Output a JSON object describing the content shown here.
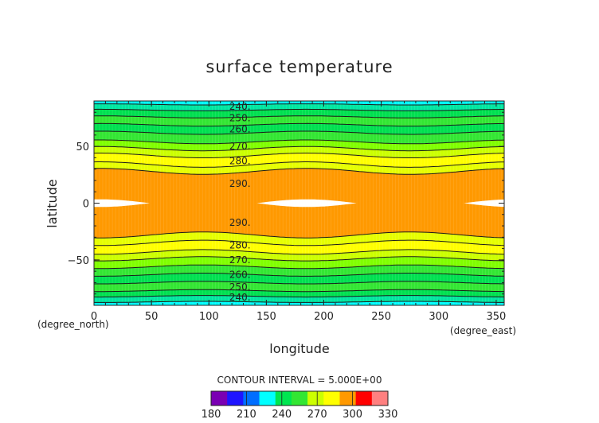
{
  "chart_data": {
    "type": "heatmap",
    "title": "surface temperature",
    "xlabel": "longitude",
    "ylabel": "latitude",
    "x_unit": "(degree_east)",
    "y_unit": "(degree_north)",
    "xlim": [
      0,
      357
    ],
    "ylim": [
      -90,
      90
    ],
    "x_ticks": [
      "0",
      "50",
      "100",
      "150",
      "200",
      "250",
      "300",
      "350"
    ],
    "y_ticks": [
      "50",
      "0",
      "-50"
    ],
    "contour_interval_text": "CONTOUR INTERVAL = 5.000E+00",
    "contour_levels": [
      240,
      250,
      260,
      270,
      280,
      290
    ],
    "contour_labels": [
      {
        "text": "240.",
        "lon": 127,
        "lat": 85
      },
      {
        "text": "250.",
        "lon": 127,
        "lat": 75
      },
      {
        "text": "260.",
        "lon": 127,
        "lat": 65
      },
      {
        "text": "270.",
        "lon": 127,
        "lat": 50
      },
      {
        "text": "280.",
        "lon": 127,
        "lat": 37
      },
      {
        "text": "290.",
        "lon": 127,
        "lat": 17
      },
      {
        "text": "290.",
        "lon": 127,
        "lat": -17
      },
      {
        "text": "280.",
        "lon": 127,
        "lat": -37
      },
      {
        "text": "270.",
        "lon": 127,
        "lat": -50
      },
      {
        "text": "260.",
        "lon": 127,
        "lat": -63
      },
      {
        "text": "250.",
        "lon": 127,
        "lat": -74
      },
      {
        "text": "240.",
        "lon": 127,
        "lat": -83
      }
    ],
    "bands": [
      {
        "from": 235,
        "to": 240,
        "color": "#00ffff",
        "lat_n": [
          90,
          87
        ],
        "lat_s": [
          -90,
          -87
        ]
      },
      {
        "from": 240,
        "to": 245,
        "color": "#00e6a0",
        "lat_n": [
          87,
          82
        ],
        "lat_s": [
          -87,
          -82
        ]
      },
      {
        "from": 245,
        "to": 250,
        "color": "#00e050",
        "lat_n": [
          82,
          76
        ],
        "lat_s": [
          -82,
          -77
        ]
      },
      {
        "from": 250,
        "to": 255,
        "color": "#33e633",
        "lat_n": [
          76,
          69
        ],
        "lat_s": [
          -77,
          -70
        ]
      },
      {
        "from": 255,
        "to": 260,
        "color": "#00e050",
        "lat_n": [
          69,
          62
        ],
        "lat_s": [
          -70,
          -63
        ]
      },
      {
        "from": 260,
        "to": 265,
        "color": "#33e633",
        "lat_n": [
          62,
          54
        ],
        "lat_s": [
          -63,
          -56
        ]
      },
      {
        "from": 265,
        "to": 270,
        "color": "#80ff00",
        "lat_n": [
          54,
          48
        ],
        "lat_s": [
          -56,
          -49
        ]
      },
      {
        "from": 270,
        "to": 275,
        "color": "#ccff00",
        "lat_n": [
          48,
          42
        ],
        "lat_s": [
          -49,
          -43
        ]
      },
      {
        "from": 275,
        "to": 280,
        "color": "#ffff00",
        "lat_n": [
          42,
          34
        ],
        "lat_s": [
          -43,
          -35
        ]
      },
      {
        "from": 280,
        "to": 285,
        "color": "#e6ff00",
        "lat_n": [
          34,
          28
        ],
        "lat_s": [
          -35,
          -28
        ]
      },
      {
        "from": 285,
        "to": 295,
        "color": "#ff9900",
        "lat_n": [
          28,
          0
        ],
        "lat_s": [
          -28,
          0
        ]
      }
    ],
    "colorbar": {
      "tick_labels": [
        "180",
        "210",
        "240",
        "270",
        "300",
        "330"
      ],
      "min": 180,
      "max": 330,
      "colors": [
        "#7a00b3",
        "#1e14ff",
        "#006eff",
        "#00ffff",
        "#00e650",
        "#33e633",
        "#ccff00",
        "#ffff00",
        "#ff9900",
        "#ff0000",
        "#ff8080"
      ]
    }
  }
}
